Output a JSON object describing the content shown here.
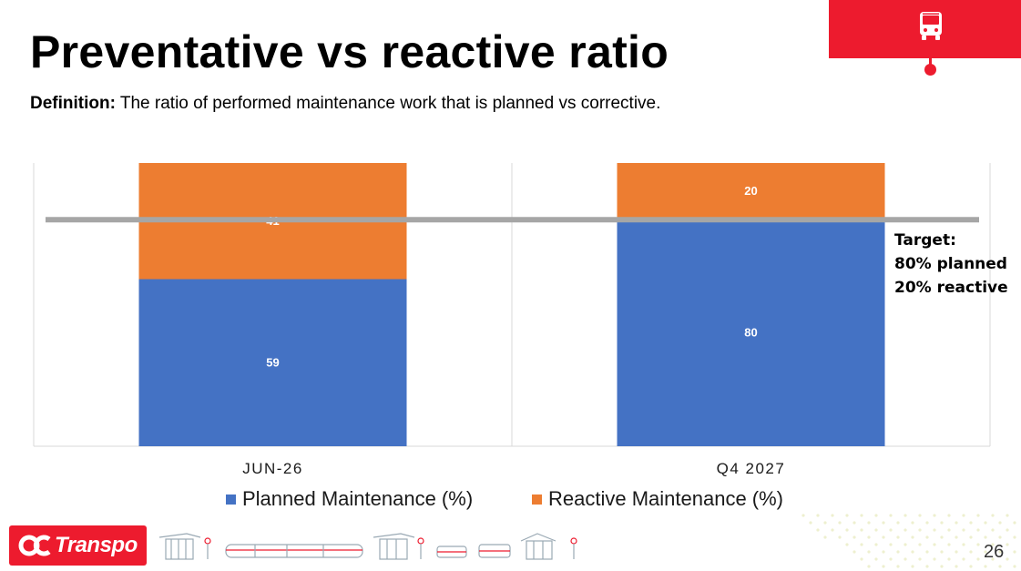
{
  "slide": {
    "title": "Preventative vs reactive ratio",
    "definition_label": "Definition:",
    "definition_text": " The ratio of performed maintenance work that is planned vs corrective.",
    "page_number": "26"
  },
  "brand": {
    "logo_text": "Transpo",
    "icon": "bus-icon",
    "accent_color": "#ed1b2e"
  },
  "target_note": {
    "line1": "Target:",
    "line2": "80% planned",
    "line3": "20% reactive"
  },
  "chart_data": {
    "type": "bar",
    "stacked": true,
    "categories": [
      "JUN-26",
      "Q4 2027"
    ],
    "series": [
      {
        "name": "Planned Maintenance (%)",
        "values": [
          59,
          80
        ],
        "color": "#4472c4"
      },
      {
        "name": "Reactive Maintenance (%)",
        "values": [
          41,
          20
        ],
        "color": "#ed7d31"
      }
    ],
    "target_line": 80,
    "ylim": [
      0,
      100
    ],
    "y_visible_max": 100,
    "legend": "bottom",
    "grid": false
  }
}
